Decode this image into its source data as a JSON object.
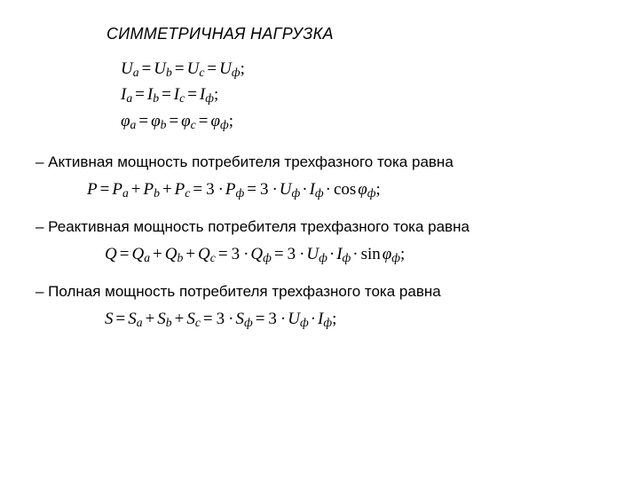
{
  "title": "СИММЕТРИЧНАЯ НАГРУЗКА",
  "sym": {
    "u": {
      "a": "U",
      "sa": "a",
      "b": "U",
      "sb": "b",
      "c": "U",
      "sc": "c",
      "f": "U",
      "sf": "ф"
    },
    "i": {
      "a": "I",
      "sa": "a",
      "b": "I",
      "sb": "b",
      "c": "I",
      "sc": "c",
      "f": "I",
      "sf": "ф"
    },
    "phi": {
      "a": "φ",
      "sa": "a",
      "b": "φ",
      "sb": "b",
      "c": "φ",
      "sc": "c",
      "f": "φ",
      "sf": "ф"
    }
  },
  "text": {
    "active": "– Активная мощность потребителя трехфазного тока равна",
    "reactive": "– Реактивная мощность потребителя трехфазного тока равна",
    "apparent": "– Полная мощность потребителя трехфазного тока равна"
  },
  "eq": {
    "P": {
      "L": "P",
      "a": "P",
      "sa": "a",
      "b": "P",
      "sb": "b",
      "c": "P",
      "sc": "c",
      "k": "3",
      "F": "P",
      "sf": "ф",
      "U": "U",
      "su": "ф",
      "I": "I",
      "si": "ф",
      "fn": "cos",
      "phi": "φ",
      "sphi": "ф"
    },
    "Q": {
      "L": "Q",
      "a": "Q",
      "sa": "a",
      "b": "Q",
      "sb": "b",
      "c": "Q",
      "sc": "c",
      "k": "3",
      "F": "Q",
      "sf": "ф",
      "U": "U",
      "su": "ф",
      "I": "I",
      "si": "ф",
      "fn": "sin",
      "phi": "φ",
      "sphi": "ф"
    },
    "S": {
      "L": "S",
      "a": "S",
      "sa": "a",
      "b": "S",
      "sb": "b",
      "c": "S",
      "sc": "c",
      "k": "3",
      "F": "S",
      "sf": "ф",
      "U": "U",
      "su": "ф",
      "I": "I",
      "si": "ф"
    }
  },
  "colors": {
    "text": "#000000",
    "bg": "#ffffff"
  }
}
